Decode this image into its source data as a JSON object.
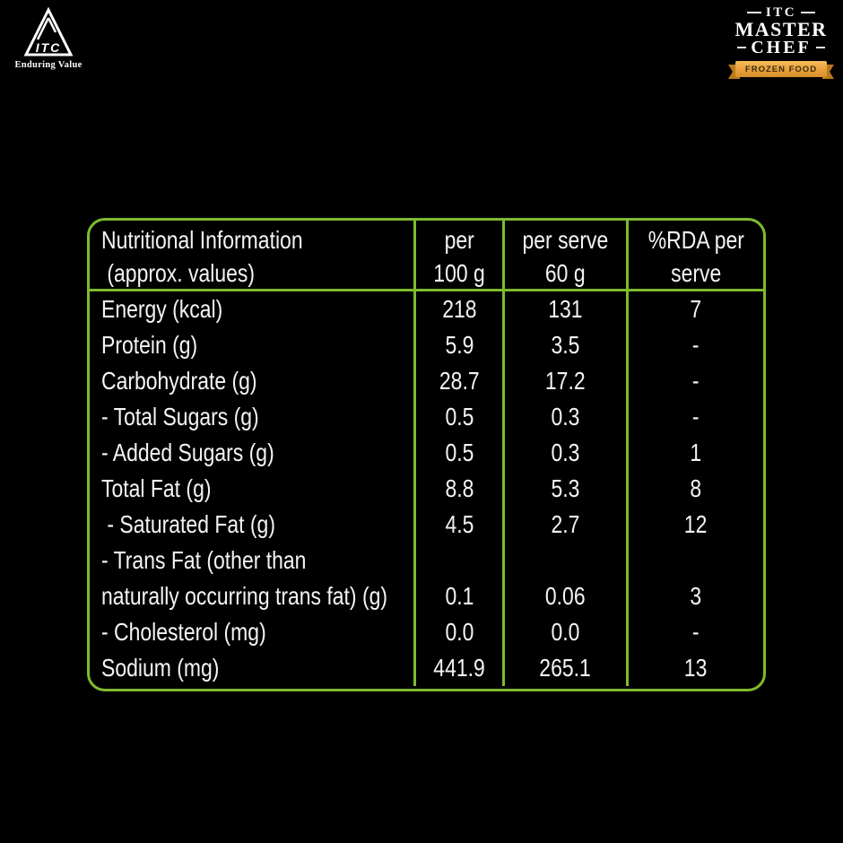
{
  "colors": {
    "table_border_green": "#7EBB2D",
    "ribbon_gold": "#E8A13C",
    "ribbon_gold_dark": "#BA7A1C",
    "background": "#000000",
    "text": "#F4F4F4"
  },
  "itc_logo": {
    "monogram": "ITC",
    "tagline": "Enduring Value"
  },
  "masterchef_logo": {
    "line1": "ITC",
    "line2": "MASTER",
    "line3": "CHEF",
    "ribbon": "FROZEN FOOD"
  },
  "table": {
    "header": {
      "col1_lines": [
        "Nutritional Information",
        " (approx. values)"
      ],
      "col2_lines": [
        "per",
        "100 g"
      ],
      "col3_lines": [
        "per serve",
        "60 g"
      ],
      "col4_lines": [
        "%RDA per",
        "serve"
      ]
    },
    "rows": [
      {
        "label_lines": [
          "Energy (kcal)"
        ],
        "per_100g": "218",
        "per_serve": "131",
        "rda": "7"
      },
      {
        "label_lines": [
          "Protein (g)"
        ],
        "per_100g": "5.9",
        "per_serve": "3.5",
        "rda": "-"
      },
      {
        "label_lines": [
          "Carbohydrate (g)"
        ],
        "per_100g": "28.7",
        "per_serve": "17.2",
        "rda": "-"
      },
      {
        "label_lines": [
          "- Total Sugars (g)"
        ],
        "per_100g": "0.5",
        "per_serve": "0.3",
        "rda": "-"
      },
      {
        "label_lines": [
          "- Added Sugars (g)"
        ],
        "per_100g": "0.5",
        "per_serve": "0.3",
        "rda": "1"
      },
      {
        "label_lines": [
          "Total Fat (g)"
        ],
        "per_100g": "8.8",
        "per_serve": "5.3",
        "rda": "8"
      },
      {
        "label_lines": [
          " - Saturated Fat (g)"
        ],
        "per_100g": "4.5",
        "per_serve": "2.7",
        "rda": "12"
      },
      {
        "label_lines": [
          "- Trans Fat (other than",
          "naturally occurring trans fat) (g)"
        ],
        "per_100g": "0.1",
        "per_serve": "0.06",
        "rda": "3"
      },
      {
        "label_lines": [
          "- Cholesterol (mg)"
        ],
        "per_100g": "0.0",
        "per_serve": "0.0",
        "rda": "-"
      },
      {
        "label_lines": [
          "Sodium (mg)"
        ],
        "per_100g": "441.9",
        "per_serve": "265.1",
        "rda": "13"
      }
    ]
  }
}
